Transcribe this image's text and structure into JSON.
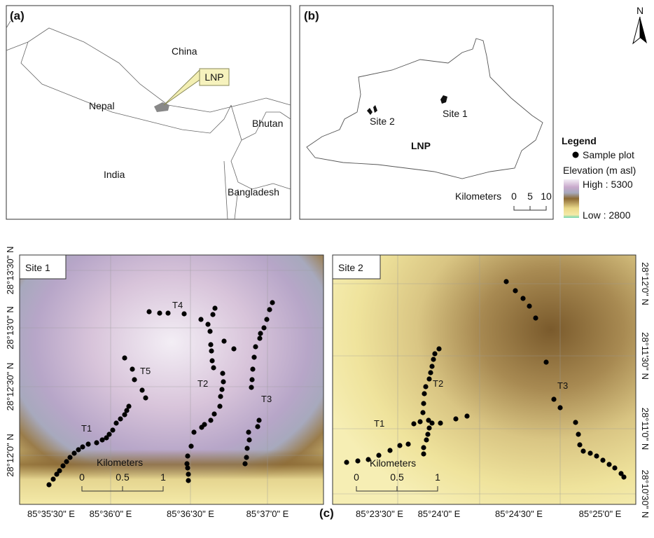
{
  "panel_a": {
    "label": "(a)",
    "places": [
      "China",
      "Nepal",
      "Bhutan",
      "India",
      "Bangladesh"
    ],
    "callout": "LNP"
  },
  "panel_b": {
    "label": "(b)",
    "sites": [
      "Site 2",
      "Site 1"
    ],
    "park": "LNP",
    "scale": {
      "title": "Kilometers",
      "ticks": [
        "0",
        "5",
        "10"
      ]
    }
  },
  "north": "N",
  "legend": {
    "title": "Legend",
    "sample": "Sample plot",
    "elevation_title": "Elevation (m asl)",
    "high": "High : 5300",
    "low": "Low : 2800"
  },
  "panel_c": {
    "label": "(c)",
    "site1": {
      "title": "Site 1",
      "transects": [
        "T4",
        "T5",
        "T2",
        "T3",
        "T1"
      ],
      "scale": {
        "title": "Kilometers",
        "ticks": [
          "0",
          "0.5",
          "1"
        ]
      },
      "x_labels": [
        "85°35'30\" E",
        "85°36'0\" E",
        "85°36'30\" E",
        "85°37'0\" E"
      ],
      "y_labels": [
        "28°13'30\" N",
        "28°13'0\" N",
        "28°12'30\" N",
        "28°12'0\" N"
      ]
    },
    "site2": {
      "title": "Site 2",
      "transects": [
        "T2",
        "T3",
        "T1"
      ],
      "scale": {
        "title": "Kilometers",
        "ticks": [
          "0",
          "0.5",
          "1"
        ]
      },
      "x_labels": [
        "85°23'30\" E",
        "85°24'0\" E",
        "85°24'30\" E",
        "85°25'0\" E"
      ],
      "y_labels": [
        "28°12'0\" N",
        "28°11'30\" N",
        "28°11'0\" N",
        "28°10'30\" N"
      ]
    }
  }
}
